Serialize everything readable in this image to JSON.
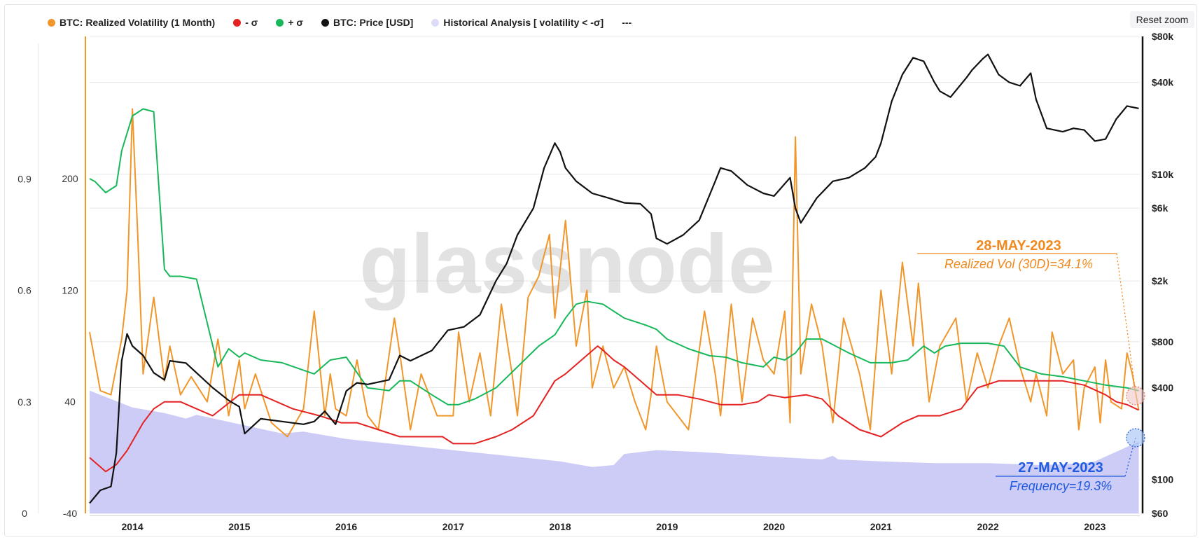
{
  "legend": {
    "items": [
      {
        "label": "BTC: Realized Volatility (1 Month)",
        "color": "#f0962a"
      },
      {
        "label": "- σ",
        "color": "#e52222"
      },
      {
        "label": "+ σ",
        "color": "#18b85a"
      },
      {
        "label": "BTC: Price [USD]",
        "color": "#111111"
      },
      {
        "label": "Historical Analysis [ volatility < -σ]",
        "color": "#d6d6f8"
      }
    ],
    "extra": "---"
  },
  "controls": {
    "reset_zoom": "Reset zoom"
  },
  "watermark": "glassnode",
  "annotations": {
    "vol": {
      "date": "28-MAY-2023",
      "text": "Realized Vol (30D)=34.1%"
    },
    "freq": {
      "date": "27-MAY-2023",
      "text": "Frequency=19.3%"
    }
  },
  "chart_data": {
    "type": "line",
    "title": "",
    "xlabel": "",
    "x_ticks": [
      "2014",
      "2015",
      "2016",
      "2017",
      "2018",
      "2019",
      "2020",
      "2021",
      "2022",
      "2023"
    ],
    "x_range": [
      2013.6,
      2023.42
    ],
    "y_left_outer": {
      "ticks": [
        "0",
        "0.3",
        "0.6",
        "0.9"
      ],
      "values": [
        0,
        0.3,
        0.6,
        0.9
      ],
      "range": [
        0,
        1.283
      ]
    },
    "y_left_inner": {
      "ticks": [
        "-40",
        "40",
        "120",
        "200"
      ],
      "values": [
        -40,
        40,
        120,
        200
      ],
      "range": [
        -40,
        302
      ]
    },
    "y_right": {
      "scale": "log",
      "ticks": [
        "$60",
        "$100",
        "$400",
        "$800",
        "$2k",
        "$6k",
        "$10k",
        "$40k",
        "$80k"
      ],
      "values": [
        60,
        100,
        400,
        800,
        2000,
        6000,
        10000,
        40000,
        80000
      ],
      "range": [
        60,
        80000
      ]
    },
    "series": [
      {
        "name": "BTC: Realized Volatility (1 Month)",
        "axis": "left_inner",
        "color": "#f0962a",
        "x": [
          2013.6,
          2013.7,
          2013.8,
          2013.9,
          2013.95,
          2014.0,
          2014.05,
          2014.1,
          2014.2,
          2014.3,
          2014.35,
          2014.45,
          2014.55,
          2014.7,
          2014.8,
          2014.9,
          2015.0,
          2015.05,
          2015.15,
          2015.3,
          2015.45,
          2015.6,
          2015.7,
          2015.8,
          2015.85,
          2015.9,
          2016.0,
          2016.1,
          2016.2,
          2016.3,
          2016.45,
          2016.5,
          2016.6,
          2016.7,
          2016.85,
          2017.0,
          2017.05,
          2017.15,
          2017.25,
          2017.35,
          2017.45,
          2017.55,
          2017.6,
          2017.7,
          2017.8,
          2017.9,
          2017.95,
          2018.05,
          2018.15,
          2018.25,
          2018.3,
          2018.4,
          2018.5,
          2018.6,
          2018.7,
          2018.8,
          2018.85,
          2018.9,
          2019.0,
          2019.1,
          2019.2,
          2019.35,
          2019.45,
          2019.5,
          2019.6,
          2019.7,
          2019.8,
          2019.9,
          2020.0,
          2020.1,
          2020.15,
          2020.2,
          2020.25,
          2020.35,
          2020.45,
          2020.55,
          2020.65,
          2020.8,
          2020.9,
          2021.0,
          2021.1,
          2021.2,
          2021.3,
          2021.35,
          2021.45,
          2021.55,
          2021.7,
          2021.8,
          2021.9,
          2022.0,
          2022.1,
          2022.2,
          2022.3,
          2022.4,
          2022.45,
          2022.55,
          2022.6,
          2022.7,
          2022.8,
          2022.85,
          2022.9,
          2023.0,
          2023.05,
          2023.1,
          2023.15,
          2023.25,
          2023.3,
          2023.35,
          2023.41
        ],
        "y": [
          90,
          48,
          45,
          85,
          120,
          250,
          160,
          60,
          115,
          55,
          80,
          45,
          58,
          40,
          85,
          30,
          70,
          35,
          60,
          25,
          15,
          35,
          105,
          30,
          60,
          35,
          30,
          70,
          30,
          20,
          100,
          75,
          20,
          60,
          30,
          30,
          90,
          40,
          75,
          30,
          110,
          60,
          30,
          115,
          130,
          160,
          100,
          170,
          80,
          120,
          50,
          80,
          50,
          65,
          40,
          20,
          45,
          80,
          40,
          30,
          20,
          105,
          60,
          30,
          110,
          40,
          100,
          70,
          60,
          105,
          25,
          230,
          60,
          110,
          80,
          25,
          100,
          60,
          20,
          120,
          60,
          140,
          80,
          125,
          40,
          80,
          100,
          40,
          75,
          50,
          80,
          100,
          65,
          40,
          60,
          30,
          90,
          60,
          70,
          20,
          50,
          65,
          25,
          70,
          40,
          35,
          75,
          60,
          34.1
        ]
      },
      {
        "name": "- σ",
        "axis": "left_inner",
        "color": "#e52222",
        "x": [
          2013.6,
          2013.75,
          2013.85,
          2013.95,
          2014.1,
          2014.2,
          2014.3,
          2014.45,
          2014.6,
          2014.75,
          2015.0,
          2015.2,
          2015.35,
          2015.5,
          2015.75,
          2015.95,
          2016.1,
          2016.3,
          2016.5,
          2016.7,
          2016.9,
          2017.0,
          2017.2,
          2017.4,
          2017.55,
          2017.75,
          2017.95,
          2018.05,
          2018.2,
          2018.35,
          2018.4,
          2018.5,
          2018.6,
          2018.75,
          2018.9,
          2019.1,
          2019.3,
          2019.5,
          2019.7,
          2019.85,
          2019.95,
          2020.1,
          2020.3,
          2020.45,
          2020.6,
          2020.8,
          2021.0,
          2021.2,
          2021.35,
          2021.55,
          2021.75,
          2021.9,
          2022.1,
          2022.3,
          2022.5,
          2022.7,
          2022.9,
          2023.1,
          2023.2,
          2023.3,
          2023.41
        ],
        "y": [
          0,
          -10,
          -5,
          5,
          25,
          35,
          40,
          40,
          35,
          30,
          45,
          45,
          40,
          35,
          30,
          25,
          25,
          20,
          15,
          15,
          15,
          10,
          10,
          15,
          20,
          30,
          55,
          60,
          70,
          80,
          77,
          70,
          65,
          55,
          45,
          45,
          42,
          38,
          38,
          40,
          45,
          43,
          45,
          42,
          30,
          20,
          15,
          25,
          30,
          30,
          35,
          50,
          55,
          55,
          55,
          55,
          52,
          45,
          40,
          38,
          34.1
        ]
      },
      {
        "name": "+ σ",
        "axis": "left_inner",
        "color": "#18b85a",
        "x": [
          2013.6,
          2013.65,
          2013.75,
          2013.85,
          2013.9,
          2014.0,
          2014.1,
          2014.2,
          2014.3,
          2014.35,
          2014.45,
          2014.6,
          2014.8,
          2014.9,
          2015.0,
          2015.05,
          2015.2,
          2015.4,
          2015.7,
          2015.85,
          2016.0,
          2016.2,
          2016.4,
          2016.5,
          2016.6,
          2016.8,
          2016.95,
          2017.05,
          2017.2,
          2017.4,
          2017.6,
          2017.8,
          2017.95,
          2018.05,
          2018.15,
          2018.25,
          2018.4,
          2018.6,
          2018.8,
          2018.9,
          2019.0,
          2019.2,
          2019.4,
          2019.55,
          2019.7,
          2019.9,
          2020.0,
          2020.1,
          2020.2,
          2020.3,
          2020.45,
          2020.7,
          2020.9,
          2021.1,
          2021.25,
          2021.4,
          2021.5,
          2021.6,
          2021.75,
          2022.0,
          2022.15,
          2022.3,
          2022.5,
          2022.7,
          2022.9,
          2023.1,
          2023.3,
          2023.41
        ],
        "y": [
          200,
          198,
          190,
          195,
          220,
          245,
          250,
          248,
          135,
          130,
          130,
          128,
          65,
          78,
          72,
          75,
          70,
          68,
          60,
          70,
          72,
          50,
          48,
          55,
          55,
          45,
          38,
          38,
          42,
          50,
          65,
          80,
          88,
          100,
          110,
          112,
          110,
          100,
          95,
          92,
          85,
          78,
          73,
          72,
          68,
          65,
          72,
          70,
          75,
          85,
          85,
          75,
          68,
          68,
          70,
          80,
          75,
          80,
          82,
          82,
          80,
          65,
          60,
          58,
          55,
          52,
          50,
          48
        ]
      },
      {
        "name": "BTC: Price [USD]",
        "axis": "right_log",
        "color": "#111111",
        "x": [
          2013.6,
          2013.7,
          2013.8,
          2013.85,
          2013.9,
          2013.95,
          2014.0,
          2014.1,
          2014.2,
          2014.3,
          2014.35,
          2014.5,
          2014.6,
          2014.75,
          2014.9,
          2015.0,
          2015.05,
          2015.2,
          2015.4,
          2015.6,
          2015.7,
          2015.8,
          2015.9,
          2016.0,
          2016.1,
          2016.2,
          2016.4,
          2016.5,
          2016.6,
          2016.8,
          2016.95,
          2017.1,
          2017.25,
          2017.4,
          2017.5,
          2017.6,
          2017.75,
          2017.85,
          2017.95,
          2018.0,
          2018.05,
          2018.15,
          2018.3,
          2018.45,
          2018.6,
          2018.75,
          2018.85,
          2018.9,
          2019.0,
          2019.15,
          2019.3,
          2019.45,
          2019.5,
          2019.6,
          2019.75,
          2019.9,
          2020.0,
          2020.15,
          2020.2,
          2020.25,
          2020.4,
          2020.55,
          2020.7,
          2020.85,
          2020.95,
          2021.0,
          2021.1,
          2021.2,
          2021.3,
          2021.4,
          2021.5,
          2021.55,
          2021.65,
          2021.8,
          2021.85,
          2021.95,
          2022.0,
          2022.1,
          2022.2,
          2022.3,
          2022.4,
          2022.45,
          2022.55,
          2022.7,
          2022.8,
          2022.9,
          2023.0,
          2023.1,
          2023.2,
          2023.3,
          2023.41
        ],
        "y": [
          70,
          85,
          90,
          150,
          600,
          900,
          750,
          650,
          500,
          450,
          600,
          580,
          500,
          400,
          330,
          300,
          200,
          250,
          240,
          230,
          240,
          280,
          230,
          380,
          430,
          420,
          450,
          650,
          600,
          700,
          950,
          1000,
          1200,
          2000,
          2600,
          4000,
          6000,
          11000,
          16000,
          14000,
          11000,
          9000,
          7500,
          7000,
          6500,
          6400,
          5500,
          3800,
          3500,
          4000,
          5000,
          9000,
          11000,
          10500,
          8500,
          7500,
          7200,
          9500,
          6000,
          4800,
          7000,
          9000,
          9500,
          11000,
          13000,
          16000,
          30000,
          45000,
          58000,
          55000,
          40000,
          35000,
          32000,
          43000,
          48000,
          57000,
          61000,
          45000,
          40000,
          38000,
          46000,
          31000,
          20000,
          19000,
          20000,
          19500,
          16500,
          17000,
          23000,
          28000,
          27000
        ]
      },
      {
        "name": "Historical Analysis [ volatility < -σ]",
        "axis": "left_outer",
        "type": "area",
        "color": "#c9c9f6",
        "x": [
          2013.6,
          2014.0,
          2014.3,
          2014.5,
          2014.6,
          2015.0,
          2015.4,
          2015.6,
          2016.0,
          2016.5,
          2017.0,
          2017.5,
          2018.0,
          2018.3,
          2018.5,
          2018.6,
          2018.9,
          2019.3,
          2019.6,
          2020.0,
          2020.45,
          2020.55,
          2020.6,
          2021.0,
          2021.5,
          2022.0,
          2022.5,
          2022.9,
          2023.0,
          2023.41
        ],
        "y": [
          0.33,
          0.285,
          0.27,
          0.255,
          0.265,
          0.24,
          0.215,
          0.22,
          0.2,
          0.185,
          0.17,
          0.155,
          0.14,
          0.125,
          0.13,
          0.16,
          0.17,
          0.165,
          0.16,
          0.152,
          0.145,
          0.155,
          0.145,
          0.14,
          0.135,
          0.135,
          0.13,
          0.135,
          0.14,
          0.193
        ]
      }
    ],
    "grid": true
  }
}
